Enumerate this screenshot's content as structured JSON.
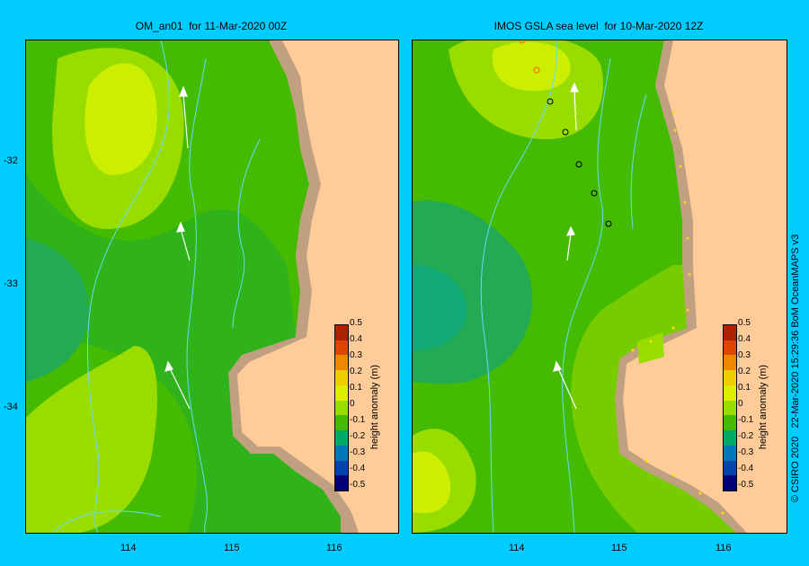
{
  "panels": [
    {
      "title": "OM_an01  for 11-Mar-2020 00Z"
    },
    {
      "title": "IMOS GSLA sea level  for 10-Mar-2020 12Z"
    }
  ],
  "axes": {
    "y_ticks": [
      "-32",
      "-33",
      "-34"
    ],
    "x_ticks": [
      "114",
      "115",
      "116"
    ]
  },
  "colorbar": {
    "label": "height anomaly (m)",
    "ticks": [
      "0.5",
      "0.4",
      "0.3",
      "0.2",
      "0.1",
      "0",
      "-0.1",
      "-0.2",
      "-0.3",
      "-0.4",
      "-0.5"
    ],
    "colors": [
      "#aa2200",
      "#dd4400",
      "#ee8800",
      "#eecc00",
      "#ddee00",
      "#99dd00",
      "#44bb00",
      "#00aa66",
      "#0077bb",
      "#0044aa",
      "#000077"
    ]
  },
  "copyright": "© CSIRO 2020   22-Mar-2020 15:29:36 BoM OceanMAPS v3",
  "colors": {
    "background": "#00ccff",
    "land": "#ffcc99",
    "coast": "#c0a080",
    "contour": "#66ddee"
  }
}
